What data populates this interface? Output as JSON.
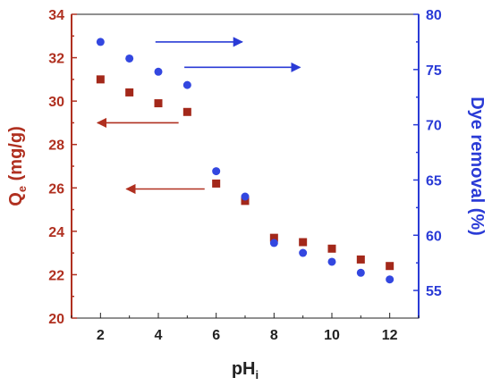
{
  "chart_data": {
    "type": "scatter",
    "xlabel": "pH",
    "xlabel_sub": "i",
    "ylabel_left": "Q",
    "ylabel_left_sub": "e",
    "ylabel_left_unit": " (mg/g)",
    "ylabel_right": "Dye removal (%)",
    "xlim": [
      1,
      13
    ],
    "ylim_left": [
      20,
      34
    ],
    "ylim_right": [
      52.5,
      80
    ],
    "x_ticks": [
      2,
      4,
      6,
      8,
      10,
      12
    ],
    "y_left_ticks": [
      20,
      22,
      24,
      26,
      28,
      30,
      32,
      34
    ],
    "y_right_ticks": [
      55,
      60,
      65,
      70,
      75,
      80
    ],
    "grid": false,
    "colors": {
      "left_axis": "#b03020",
      "right_axis": "#2a3bd6",
      "qe_marker": "#a3281a",
      "removal_marker": "#3347e0",
      "left_arrow": "#b03020",
      "right_arrow": "#2a3bd6"
    },
    "series": [
      {
        "axis": "left",
        "marker": "square",
        "x": [
          2,
          3,
          4,
          5,
          6,
          7,
          8,
          9,
          10,
          11,
          12
        ],
        "y": [
          31.0,
          30.4,
          29.9,
          29.5,
          26.2,
          25.4,
          23.7,
          23.5,
          23.2,
          22.7,
          22.4
        ]
      },
      {
        "axis": "right",
        "marker": "circle",
        "x": [
          2,
          3,
          4,
          5,
          6,
          7,
          8,
          9,
          10,
          11,
          12
        ],
        "y": [
          77.5,
          76.0,
          74.8,
          73.6,
          65.8,
          63.5,
          59.3,
          58.4,
          57.6,
          56.6,
          56.0
        ]
      }
    ],
    "annotations": [
      {
        "type": "arrow",
        "axis": "right",
        "from_x": 3.9,
        "to_x": 6.9,
        "y": 77.5
      },
      {
        "type": "arrow",
        "axis": "right",
        "from_x": 4.9,
        "to_x": 8.9,
        "y": 75.2
      },
      {
        "type": "arrow",
        "axis": "left",
        "from_x": 4.7,
        "to_x": 1.9,
        "y": 29.0
      },
      {
        "type": "arrow",
        "axis": "left",
        "from_x": 5.6,
        "to_x": 2.9,
        "y": 25.95
      }
    ]
  }
}
